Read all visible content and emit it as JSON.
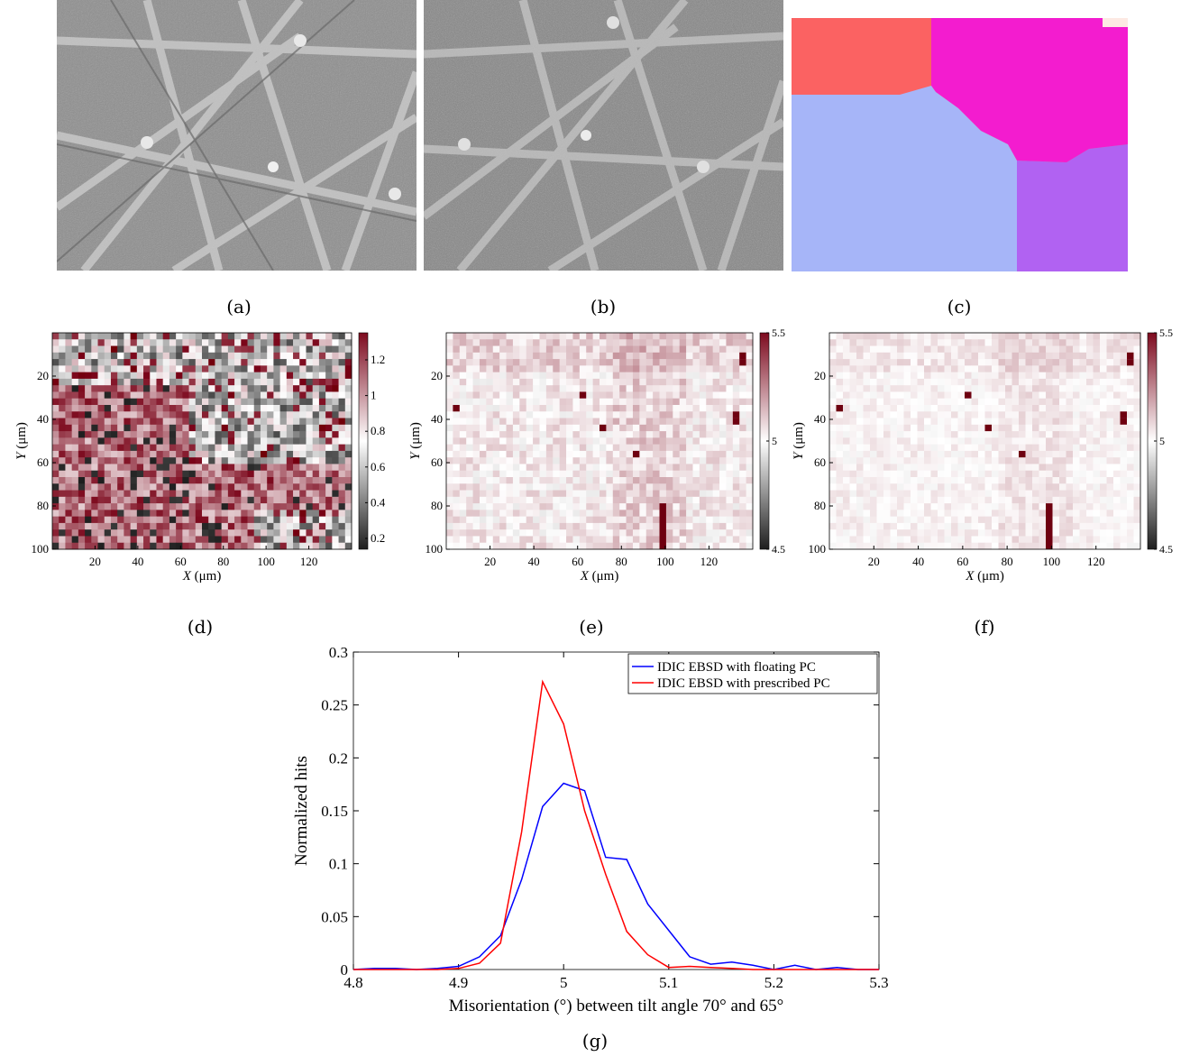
{
  "captions": {
    "a": "(a)",
    "b": "(b)",
    "c": "(c)",
    "d": "(d)",
    "e": "(e)",
    "f": "(f)",
    "g": "(g)"
  },
  "maps": {
    "x_label_var": "X",
    "y_label_var": "Y",
    "unit_label": "(μm)",
    "x_ticks": [
      "20",
      "40",
      "60",
      "80",
      "100",
      "120"
    ],
    "y_ticks": [
      "20",
      "40",
      "60",
      "80",
      "100"
    ],
    "d_colorbar_ticks": [
      "1.2",
      "1",
      "0.8",
      "0.6",
      "0.4",
      "0.2"
    ],
    "ef_colorbar_ticks": [
      "5.5",
      "5",
      "4.5"
    ]
  },
  "grain_colors": [
    "#fb6262",
    "#f31ccf",
    "#a6b5f8",
    "#b162f2"
  ],
  "chart_data": {
    "type": "line",
    "xlabel": "Misorientation (°) between tilt angle 70° and 65°",
    "ylabel": "Normalized hits",
    "xlim": [
      4.8,
      5.3
    ],
    "ylim": [
      0,
      0.3
    ],
    "x_ticks": [
      "4.8",
      "4.9",
      "5",
      "5.1",
      "5.2",
      "5.3"
    ],
    "y_ticks": [
      "0",
      "0.05",
      "0.1",
      "0.15",
      "0.2",
      "0.25",
      "0.3"
    ],
    "legend_position": "top-right",
    "x": [
      4.8,
      4.82,
      4.84,
      4.86,
      4.88,
      4.9,
      4.92,
      4.94,
      4.96,
      4.98,
      5.0,
      5.02,
      5.04,
      5.06,
      5.08,
      5.1,
      5.12,
      5.14,
      5.16,
      5.18,
      5.2,
      5.22,
      5.24,
      5.26,
      5.28,
      5.3
    ],
    "series": [
      {
        "name": "IDIC EBSD with floating PC",
        "color": "#0000ff",
        "values": [
          0,
          0.001,
          0.001,
          0,
          0.001,
          0.003,
          0.012,
          0.032,
          0.085,
          0.154,
          0.176,
          0.169,
          0.106,
          0.104,
          0.062,
          0.037,
          0.012,
          0.005,
          0.007,
          0.004,
          0.0,
          0.004,
          0,
          0.002,
          0,
          0
        ]
      },
      {
        "name": "IDIC EBSD with prescribed PC",
        "color": "#ff0000",
        "values": [
          0,
          0,
          0,
          0,
          0,
          0.001,
          0.006,
          0.025,
          0.13,
          0.272,
          0.232,
          0.15,
          0.09,
          0.036,
          0.014,
          0.002,
          0.003,
          0.002,
          0.001,
          0,
          0,
          0,
          0,
          0,
          0,
          0
        ]
      }
    ]
  }
}
